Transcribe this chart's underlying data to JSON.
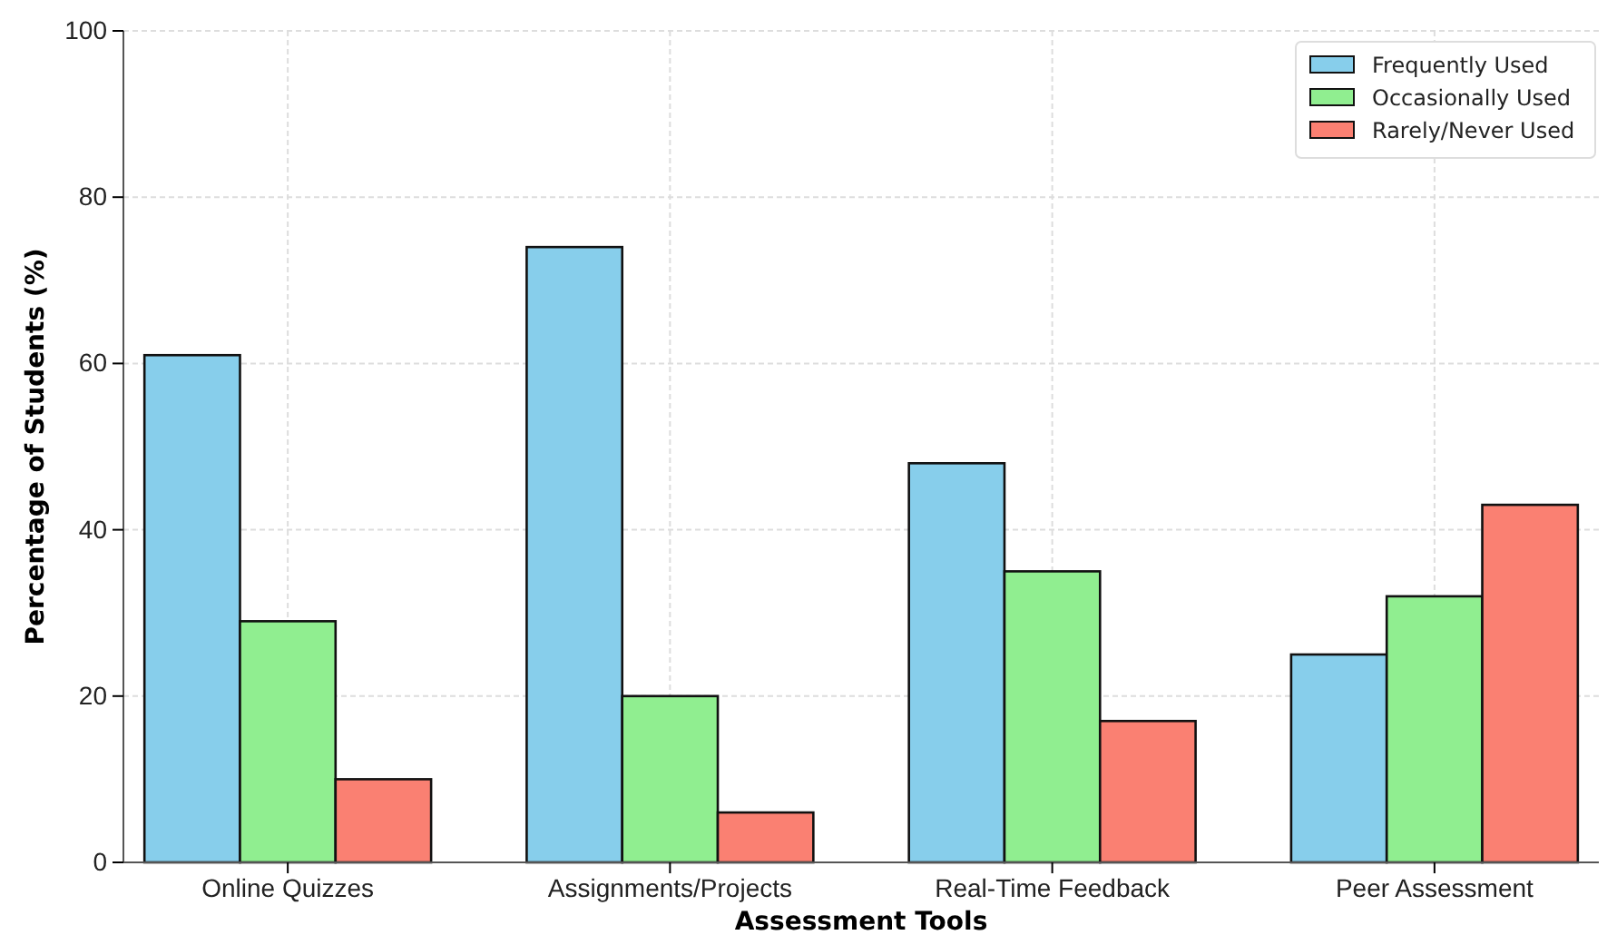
{
  "chart_data": {
    "type": "bar",
    "xlabel": "Assessment Tools",
    "ylabel": "Percentage of Students (%)",
    "categories": [
      "Online Quizzes",
      "Assignments/Projects",
      "Real-Time Feedback",
      "Peer Assessment"
    ],
    "series": [
      {
        "name": "Frequently Used",
        "color": "#87ceeb",
        "values": [
          61,
          74,
          48,
          25
        ]
      },
      {
        "name": "Occasionally Used",
        "color": "#90ee90",
        "values": [
          29,
          20,
          35,
          32
        ]
      },
      {
        "name": "Rarely/Never Used",
        "color": "#fa8072",
        "values": [
          10,
          6,
          17,
          43
        ]
      }
    ],
    "ylim": [
      0,
      100
    ],
    "yticks": [
      0,
      20,
      40,
      60,
      80,
      100
    ],
    "grid": true,
    "legend": "top right"
  }
}
